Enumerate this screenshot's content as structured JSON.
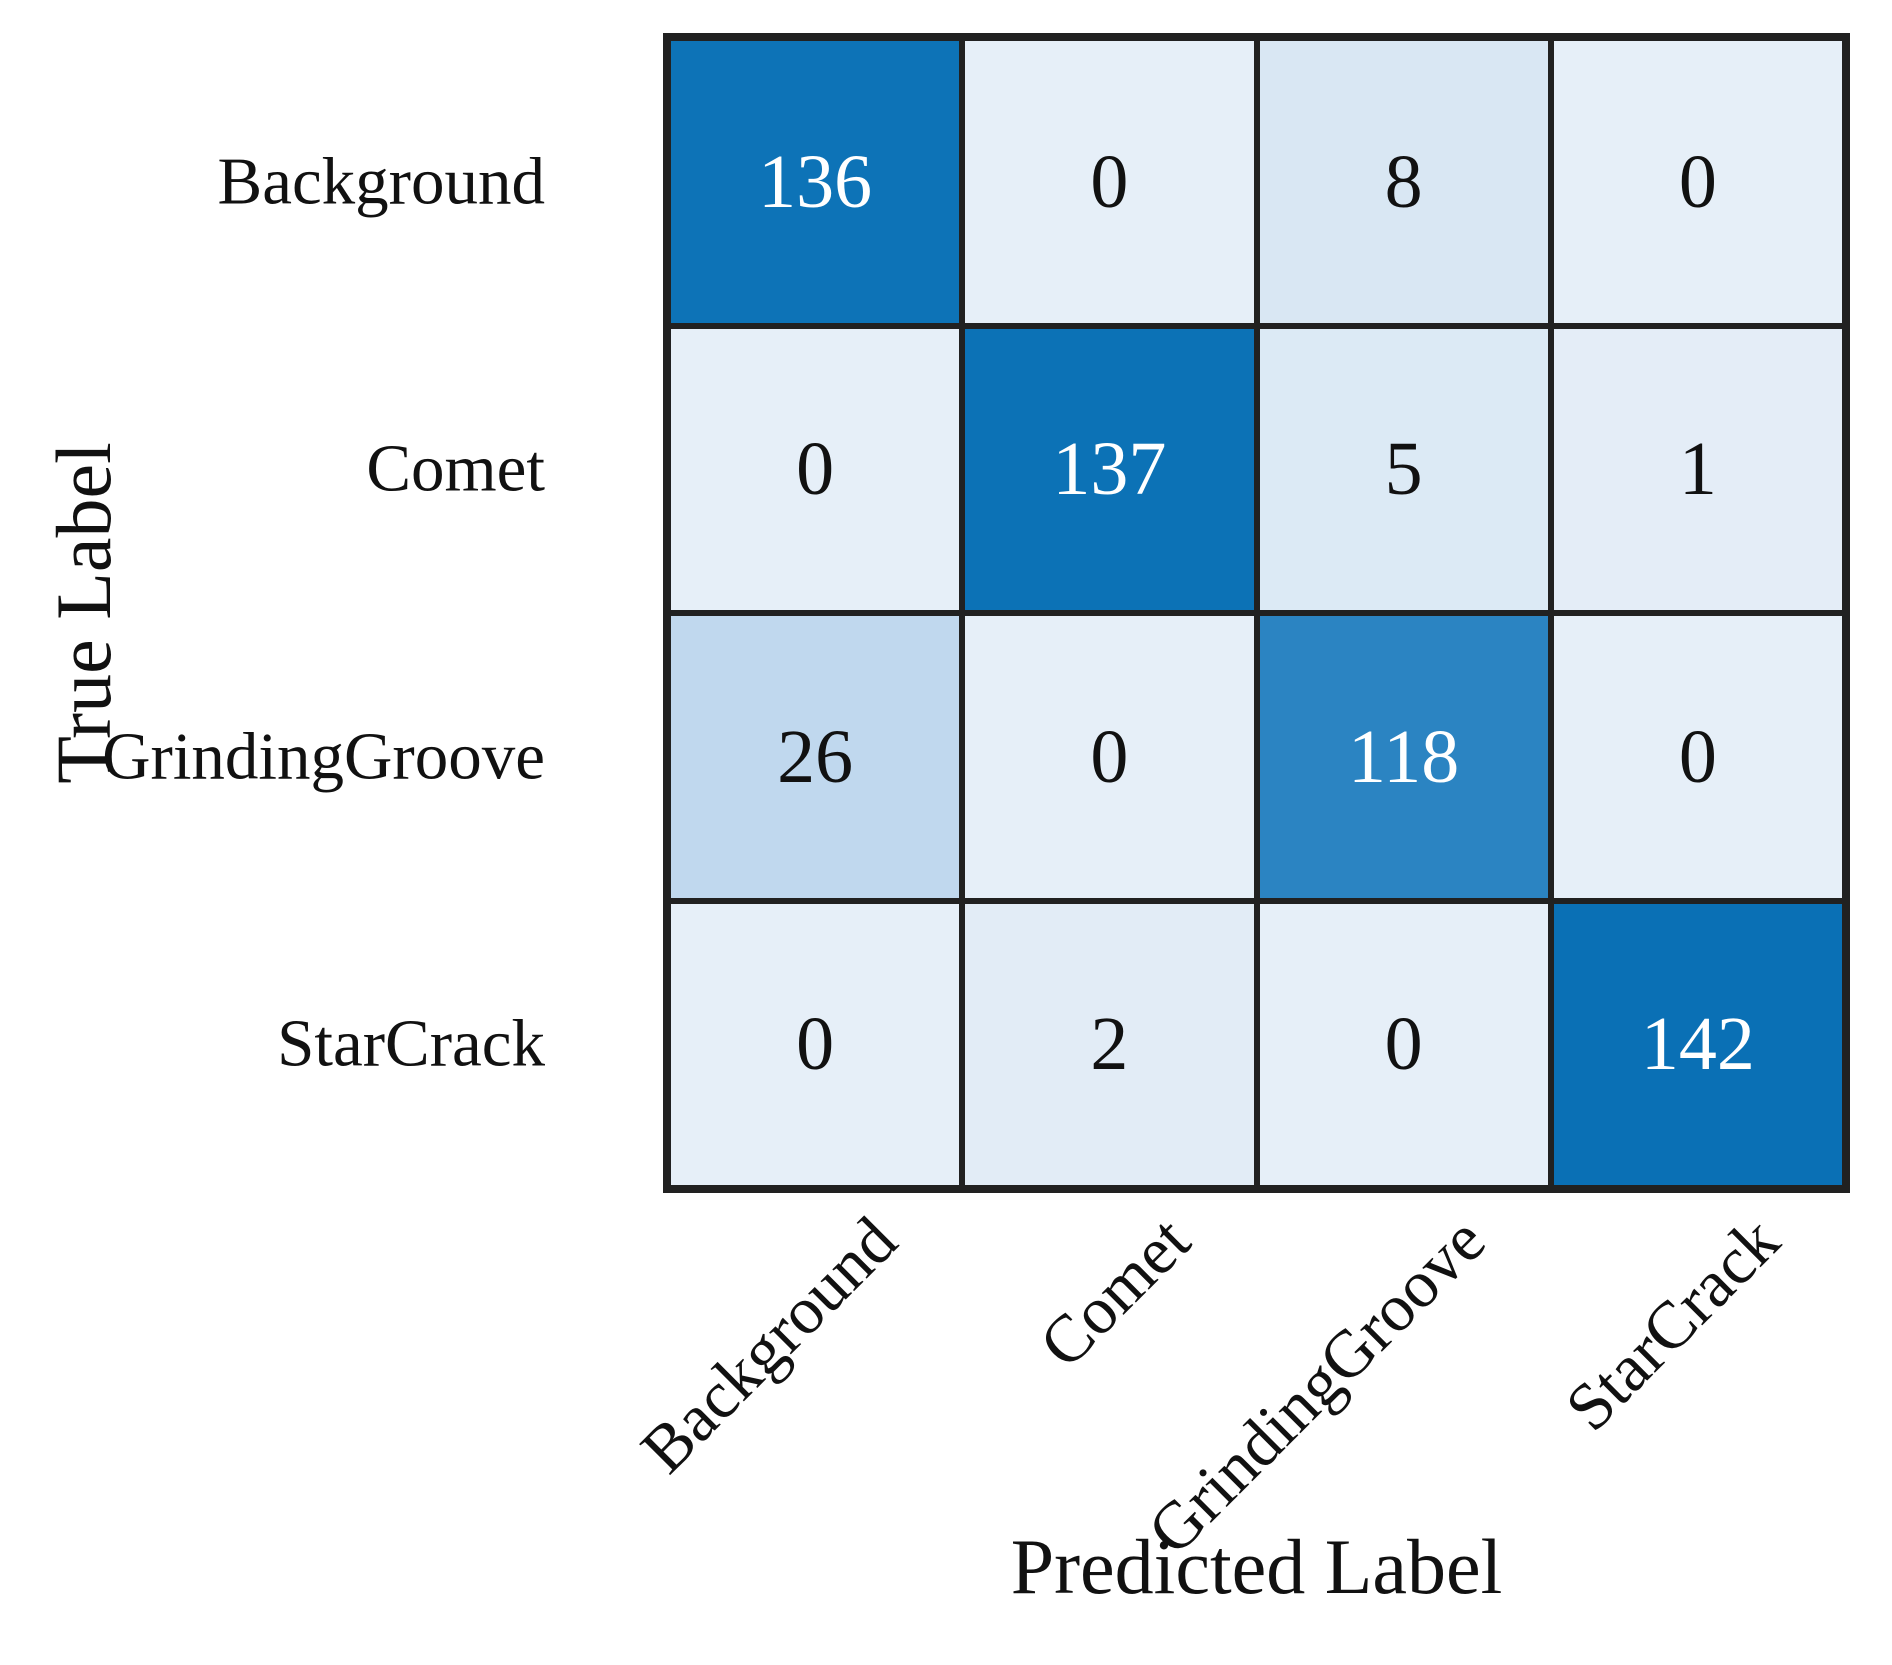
{
  "figure": {
    "background": "#ffffff",
    "grid_line_color": "#212121",
    "default_text_color": "#111111"
  },
  "chart_data": {
    "type": "heatmap",
    "title": "",
    "xlabel": "Predicted Label",
    "ylabel": "True Label",
    "x_tick_labels": [
      "Background",
      "Comet",
      "GrindingGroove",
      "StarCrack"
    ],
    "y_tick_labels": [
      "Background",
      "Comet",
      "GrindingGroove",
      "StarCrack"
    ],
    "matrix": [
      [
        136,
        0,
        8,
        0
      ],
      [
        0,
        137,
        5,
        1
      ],
      [
        26,
        0,
        118,
        0
      ],
      [
        0,
        2,
        0,
        142
      ]
    ],
    "value_range": [
      0,
      142
    ],
    "colormap": "Blues",
    "grid": "on",
    "legend_position": "none",
    "x_tick_rotation_deg": 45,
    "cell_fill_colors": [
      [
        "#0d73b7",
        "#e6eff8",
        "#d9e7f3",
        "#e6eff8"
      ],
      [
        "#e6eff8",
        "#0c72b6",
        "#dceaf5",
        "#e4edf7"
      ],
      [
        "#c0d8ee",
        "#e6eff8",
        "#2b84c2",
        "#e6eff8"
      ],
      [
        "#e6eff8",
        "#e2ecf6",
        "#e6eff8",
        "#0a70b5"
      ]
    ],
    "cell_text_colors": [
      [
        "#ffffff",
        "#111111",
        "#111111",
        "#111111"
      ],
      [
        "#111111",
        "#ffffff",
        "#111111",
        "#111111"
      ],
      [
        "#111111",
        "#111111",
        "#ffffff",
        "#111111"
      ],
      [
        "#111111",
        "#111111",
        "#111111",
        "#ffffff"
      ]
    ]
  }
}
